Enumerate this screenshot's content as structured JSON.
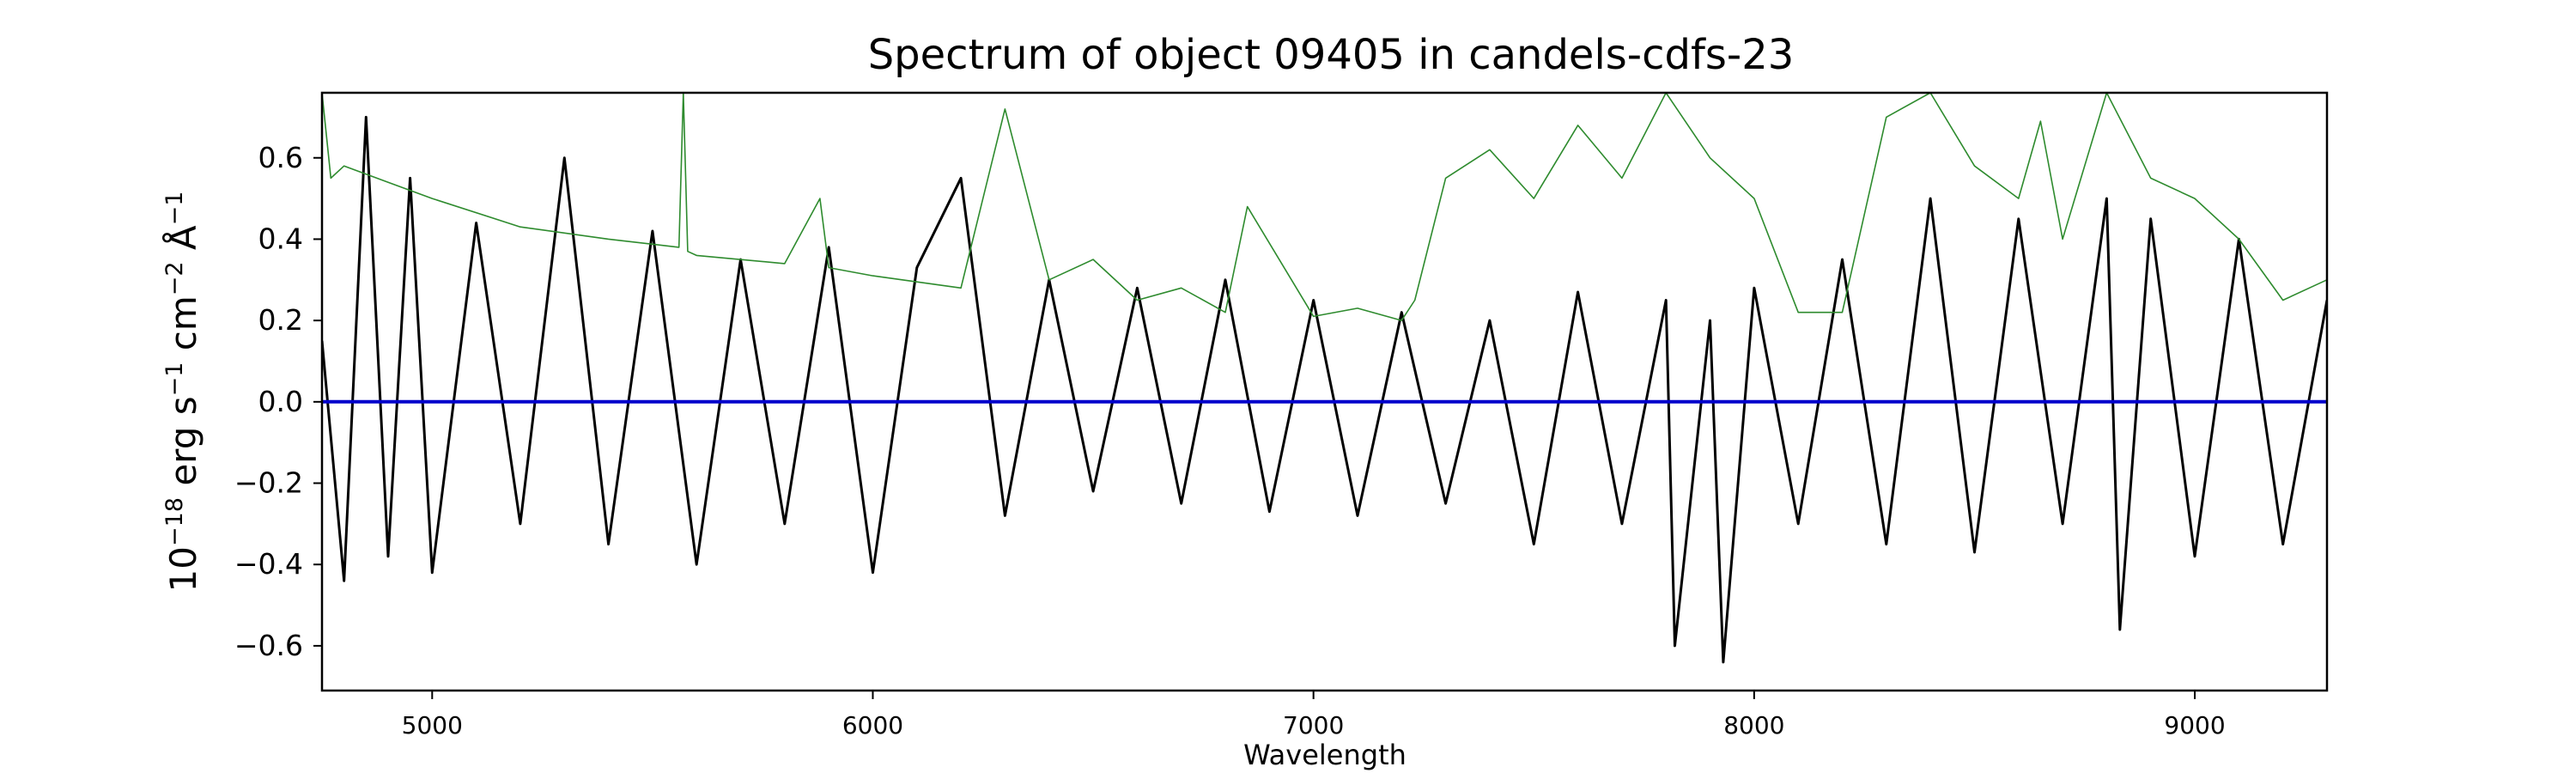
{
  "chart_data": {
    "type": "line",
    "title": "Spectrum of object 09405 in candels-cdfs-23",
    "xlabel": "Wavelength",
    "ylabel": {
      "base": "10",
      "exp1": "−18",
      "mid": " erg s",
      "exp2": "−1",
      "mid2": " cm",
      "exp3": "−2",
      "mid3": " Å",
      "exp4": "−1"
    },
    "xlim": [
      4750,
      9300
    ],
    "ylim": [
      -0.71,
      0.76
    ],
    "xticks": [
      5000,
      6000,
      7000,
      8000,
      9000
    ],
    "xtick_labels": [
      "5000",
      "6000",
      "7000",
      "8000",
      "9000"
    ],
    "yticks": [
      -0.6,
      -0.4,
      -0.2,
      0.0,
      0.2,
      0.4,
      0.6
    ],
    "ytick_labels": [
      "−0.6",
      "−0.4",
      "−0.2",
      "0.0",
      "0.2",
      "0.4",
      "0.6"
    ],
    "grid": false,
    "series": [
      {
        "role": "flux",
        "color": "#000000",
        "x": [
          4750,
          4800,
          4850,
          4900,
          4950,
          5000,
          5100,
          5200,
          5300,
          5400,
          5500,
          5600,
          5700,
          5800,
          5900,
          6000,
          6100,
          6200,
          6300,
          6400,
          6500,
          6600,
          6700,
          6800,
          6900,
          7000,
          7100,
          7200,
          7300,
          7400,
          7500,
          7600,
          7700,
          7800,
          7820,
          7900,
          7930,
          8000,
          8100,
          8200,
          8300,
          8400,
          8500,
          8600,
          8700,
          8800,
          8830,
          8900,
          9000,
          9100,
          9200,
          9300
        ],
        "y": [
          0.15,
          -0.44,
          0.7,
          -0.38,
          0.55,
          -0.42,
          0.44,
          -0.3,
          0.6,
          -0.35,
          0.42,
          -0.4,
          0.35,
          -0.3,
          0.38,
          -0.42,
          0.33,
          0.55,
          -0.28,
          0.3,
          -0.22,
          0.28,
          -0.25,
          0.3,
          -0.27,
          0.25,
          -0.28,
          0.22,
          -0.25,
          0.2,
          -0.35,
          0.27,
          -0.3,
          0.25,
          -0.6,
          0.2,
          -0.64,
          0.28,
          -0.3,
          0.35,
          -0.35,
          0.5,
          -0.37,
          0.45,
          -0.3,
          0.5,
          -0.56,
          0.45,
          -0.38,
          0.4,
          -0.35,
          0.25
        ]
      },
      {
        "role": "error",
        "color": "#2e8b2e",
        "x": [
          4750,
          4770,
          4800,
          4900,
          5000,
          5200,
          5400,
          5560,
          5570,
          5580,
          5600,
          5800,
          5880,
          5900,
          6000,
          6200,
          6300,
          6400,
          6500,
          6600,
          6700,
          6800,
          6850,
          7000,
          7100,
          7200,
          7230,
          7300,
          7400,
          7500,
          7600,
          7700,
          7800,
          7900,
          8000,
          8100,
          8200,
          8300,
          8400,
          8500,
          8600,
          8650,
          8700,
          8800,
          8900,
          9000,
          9100,
          9200,
          9300
        ],
        "y": [
          0.76,
          0.55,
          0.58,
          0.54,
          0.5,
          0.43,
          0.4,
          0.38,
          0.76,
          0.37,
          0.36,
          0.34,
          0.5,
          0.33,
          0.31,
          0.28,
          0.72,
          0.3,
          0.35,
          0.25,
          0.28,
          0.22,
          0.48,
          0.21,
          0.23,
          0.2,
          0.25,
          0.55,
          0.62,
          0.5,
          0.68,
          0.55,
          0.76,
          0.6,
          0.5,
          0.22,
          0.22,
          0.7,
          0.76,
          0.58,
          0.5,
          0.69,
          0.4,
          0.76,
          0.55,
          0.5,
          0.4,
          0.25,
          0.3
        ]
      },
      {
        "role": "zero",
        "color": "#0000cc",
        "x": [
          4750,
          9300
        ],
        "y": [
          0.0,
          0.0
        ]
      }
    ]
  }
}
